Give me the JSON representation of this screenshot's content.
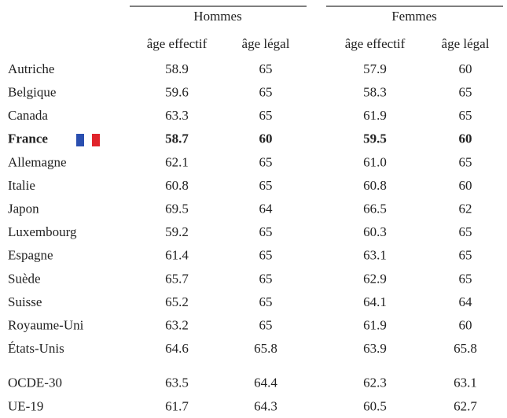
{
  "table": {
    "groups": [
      "Hommes",
      "Femmes"
    ],
    "subheaders": [
      "âge effectif",
      "âge légal",
      "âge effectif",
      "âge légal"
    ],
    "rows": [
      [
        "Autriche",
        "58.9",
        "65",
        "57.9",
        "60"
      ],
      [
        "Belgique",
        "59.6",
        "65",
        "58.3",
        "65"
      ],
      [
        "Canada",
        "63.3",
        "65",
        "61.9",
        "65"
      ],
      [
        "France",
        "58.7",
        "60",
        "59.5",
        "60"
      ],
      [
        "Allemagne",
        "62.1",
        "65",
        "61.0",
        "65"
      ],
      [
        "Italie",
        "60.8",
        "65",
        "60.8",
        "60"
      ],
      [
        "Japon",
        "69.5",
        "64",
        "66.5",
        "62"
      ],
      [
        "Luxembourg",
        "59.2",
        "65",
        "60.3",
        "65"
      ],
      [
        "Espagne",
        "61.4",
        "65",
        "63.1",
        "65"
      ],
      [
        "Suède",
        "65.7",
        "65",
        "62.9",
        "65"
      ],
      [
        "Suisse",
        "65.2",
        "65",
        "64.1",
        "64"
      ],
      [
        "Royaume-Uni",
        "63.2",
        "65",
        "61.9",
        "60"
      ],
      [
        "États-Unis",
        "64.6",
        "65.8",
        "63.9",
        "65.8"
      ],
      [
        "OCDE-30",
        "63.5",
        "64.4",
        "62.3",
        "63.1"
      ],
      [
        "UE-19",
        "61.7",
        "64.3",
        "60.5",
        "62.7"
      ]
    ]
  }
}
